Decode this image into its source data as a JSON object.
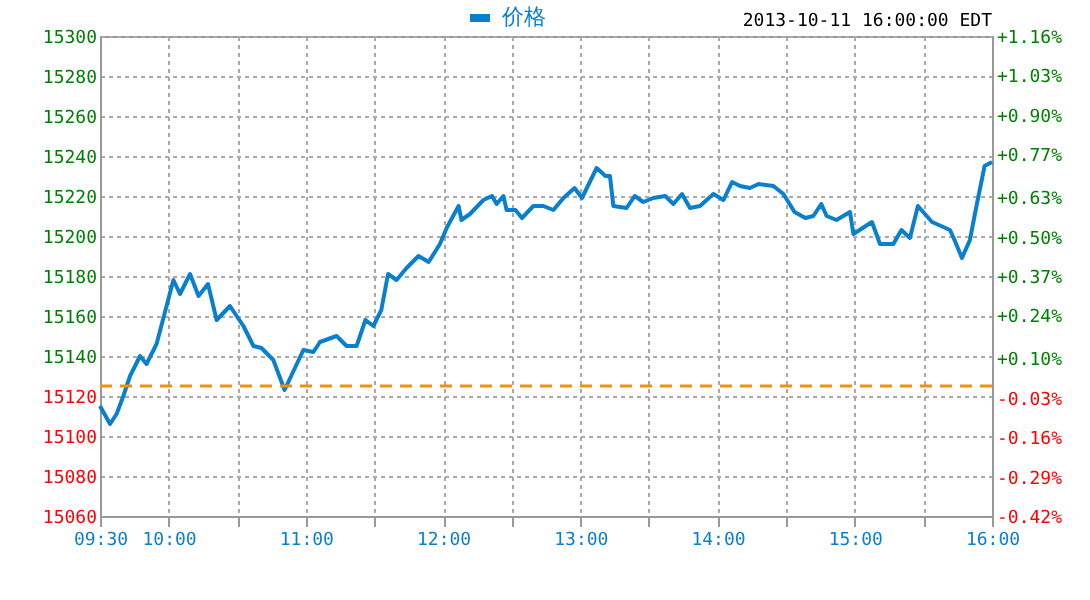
{
  "chart_data": {
    "type": "line",
    "annotations": [
      "2013-10-11 16:00:00 EDT"
    ],
    "series": [
      {
        "name": "价格",
        "color": "#0a7fce",
        "x": [
          9.5,
          9.573,
          9.621,
          9.67,
          9.719,
          9.792,
          9.839,
          9.912,
          9.985,
          10.035,
          10.083,
          10.156,
          10.218,
          10.287,
          10.35,
          10.447,
          10.545,
          10.618,
          10.676,
          10.763,
          10.845,
          10.982,
          11.055,
          11.103,
          11.224,
          11.297,
          11.37,
          11.434,
          11.492,
          11.55,
          11.599,
          11.661,
          11.734,
          11.821,
          11.895,
          11.977,
          12.026,
          12.113,
          12.134,
          12.196,
          12.294,
          12.357,
          12.39,
          12.44,
          12.463,
          12.527,
          12.575,
          12.658,
          12.731,
          12.804,
          12.877,
          12.958,
          13.012,
          13.119,
          13.183,
          13.216,
          13.241,
          13.337,
          13.396,
          13.459,
          13.532,
          13.619,
          13.678,
          13.741,
          13.799,
          13.872,
          13.97,
          14.043,
          14.106,
          14.164,
          14.236,
          14.299,
          14.407,
          14.48,
          14.561,
          14.64,
          14.698,
          14.756,
          14.795,
          14.867,
          14.965,
          14.99,
          15.125,
          15.184,
          15.281,
          15.34,
          15.402,
          15.46,
          15.563,
          15.694,
          15.727,
          15.781,
          15.839,
          15.887,
          15.946,
          16.0
        ],
        "values": [
          15115,
          15106,
          15111,
          15120,
          15130,
          15140,
          15136,
          15146,
          15165,
          15178,
          15171,
          15181,
          15170,
          15176,
          15158,
          15165,
          15155,
          15145,
          15144,
          15138,
          15123,
          15143,
          15142,
          15147,
          15150,
          15145,
          15145,
          15158,
          15155,
          15163,
          15181,
          15178,
          15184,
          15190,
          15187,
          15196,
          15204,
          15215,
          15208,
          15211,
          15218,
          15220,
          15216,
          15220,
          15213,
          15213,
          15209,
          15215,
          15215,
          15213,
          15219,
          15224,
          15219,
          15234,
          15230,
          15230,
          15215,
          15214,
          15220,
          15217,
          15219,
          15220,
          15216,
          15221,
          15214,
          15215,
          15221,
          15218,
          15227,
          15225,
          15224,
          15226,
          15225,
          15221,
          15212,
          15209,
          15210,
          15216,
          15210,
          15208,
          15212,
          15201,
          15207,
          15196,
          15196,
          15203,
          15199,
          15215,
          15207,
          15203,
          15198,
          15189,
          15198,
          15215,
          15235,
          15237
        ]
      }
    ],
    "xlim": [
      9.5,
      16.0
    ],
    "xticks": [
      {
        "value": 9.5,
        "label": "09:30"
      },
      {
        "value": 10,
        "label": "10:00"
      },
      {
        "value": 10.5,
        "label": null
      },
      {
        "value": 11,
        "label": "11:00"
      },
      {
        "value": 11.5,
        "label": null
      },
      {
        "value": 12,
        "label": "12:00"
      },
      {
        "value": 12.5,
        "label": null
      },
      {
        "value": 13,
        "label": "13:00"
      },
      {
        "value": 13.5,
        "label": null
      },
      {
        "value": 14,
        "label": "14:00"
      },
      {
        "value": 14.5,
        "label": null
      },
      {
        "value": 15,
        "label": "15:00"
      },
      {
        "value": 15.5,
        "label": null
      },
      {
        "value": 16,
        "label": "16:00"
      }
    ],
    "ylim": [
      15060,
      15300
    ],
    "yticks": [
      15060,
      15080,
      15100,
      15120,
      15140,
      15160,
      15180,
      15200,
      15220,
      15240,
      15260,
      15280,
      15300
    ],
    "y2lim": [
      -0.42,
      1.16
    ],
    "y2ticks": [
      {
        "value": -0.42,
        "label": "-0.42%"
      },
      {
        "value": -0.29,
        "label": "-0.29%"
      },
      {
        "value": -0.16,
        "label": "-0.16%"
      },
      {
        "value": -0.03,
        "label": "-0.03%"
      },
      {
        "value": 0.1,
        "label": "+0.10%"
      },
      {
        "value": 0.24,
        "label": "+0.24%"
      },
      {
        "value": 0.37,
        "label": "+0.37%"
      },
      {
        "value": 0.5,
        "label": "+0.50%"
      },
      {
        "value": 0.63,
        "label": "+0.63%"
      },
      {
        "value": 0.77,
        "label": "+0.77%"
      },
      {
        "value": 0.9,
        "label": "+0.90%"
      },
      {
        "value": 1.03,
        "label": "+1.03%"
      },
      {
        "value": 1.16,
        "label": "+1.16%"
      }
    ],
    "ref_lines": [
      {
        "axis": "y",
        "value": 15125,
        "color": "#f0900f",
        "line_style": "dashed"
      }
    ],
    "grid": true,
    "legend": "top",
    "line_style": "solid",
    "marker": "none"
  }
}
